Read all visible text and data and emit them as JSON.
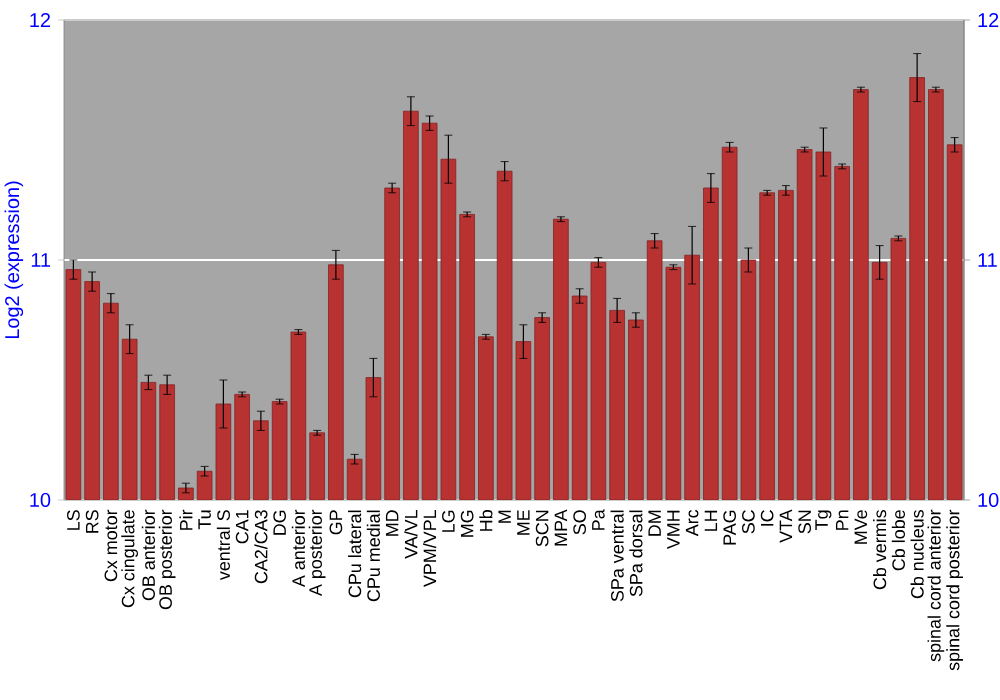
{
  "chart_data": {
    "type": "bar",
    "ylabel": "Log2 (expression)",
    "categories": [
      "LS",
      "RS",
      "Cx motor",
      "Cx cingulate",
      "OB anterior",
      "OB posterior",
      "Pir",
      "Tu",
      "ventral S",
      "CA1",
      "CA2/CA3",
      "DG",
      "A anterior",
      "A posterior",
      "GP",
      "CPu lateral",
      "CPu medial",
      "MD",
      "VA/VL",
      "VPM/VPL",
      "LG",
      "MG",
      "Hb",
      "M",
      "ME",
      "SCN",
      "MPA",
      "SO",
      "Pa",
      "SPa ventral",
      "SPa dorsal",
      "DM",
      "VMH",
      "Arc",
      "LH",
      "PAG",
      "SC",
      "IC",
      "VTA",
      "SN",
      "Tg",
      "Pn",
      "MVe",
      "Cb vermis",
      "Cb lobe",
      "Cb nucleus",
      "spinal cord anterior",
      "spinal cord posterior"
    ],
    "values": [
      10.96,
      10.91,
      10.82,
      10.67,
      10.49,
      10.48,
      10.05,
      10.12,
      10.4,
      10.44,
      10.33,
      10.41,
      10.7,
      10.28,
      10.98,
      10.17,
      10.51,
      11.3,
      11.62,
      11.57,
      11.42,
      11.19,
      10.68,
      11.37,
      10.66,
      10.76,
      11.17,
      10.85,
      10.99,
      10.79,
      10.75,
      11.08,
      10.97,
      11.02,
      11.3,
      11.47,
      11.0,
      11.28,
      11.29,
      11.46,
      11.45,
      11.39,
      11.71,
      10.99,
      11.09,
      11.76,
      11.71,
      11.48
    ],
    "errors": [
      0.04,
      0.04,
      0.04,
      0.06,
      0.03,
      0.04,
      0.02,
      0.02,
      0.1,
      0.01,
      0.04,
      0.01,
      0.01,
      0.01,
      0.06,
      0.02,
      0.08,
      0.02,
      0.06,
      0.03,
      0.1,
      0.01,
      0.01,
      0.04,
      0.07,
      0.02,
      0.01,
      0.03,
      0.02,
      0.05,
      0.03,
      0.03,
      0.01,
      0.12,
      0.06,
      0.02,
      0.05,
      0.01,
      0.02,
      0.01,
      0.1,
      0.01,
      0.01,
      0.07,
      0.01,
      0.1,
      0.01,
      0.03
    ],
    "color": "#b83232",
    "ylim": [
      10,
      12
    ],
    "yticks": [
      10,
      11,
      12
    ],
    "y2lim": [
      10,
      12
    ],
    "y2ticks": [
      10,
      11,
      12
    ],
    "grid": "y"
  }
}
